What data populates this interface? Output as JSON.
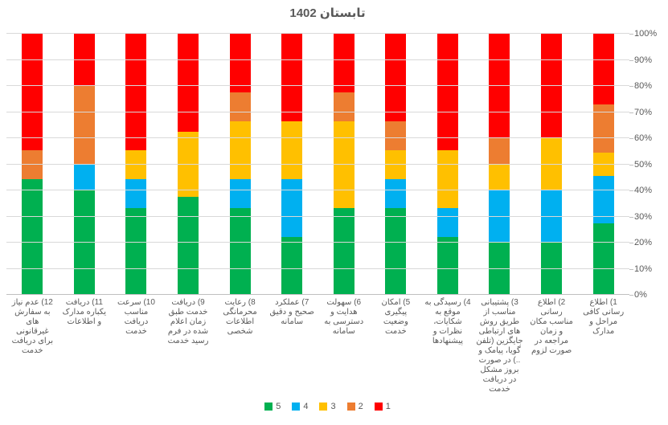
{
  "chart_data": {
    "type": "bar",
    "subtype": "stacked-100-percent",
    "title": "تابستان 1402",
    "orientation": "vertical",
    "grid": true,
    "y_axis_side": "right",
    "legend_position": "bottom",
    "ylim": [
      0,
      100
    ],
    "y_ticks": [
      "0%",
      "10%",
      "20%",
      "30%",
      "40%",
      "50%",
      "60%",
      "70%",
      "80%",
      "90%",
      "100%"
    ],
    "categories": [
      "12) عدم نیاز به سفارش های غیرقانونی برای دریافت خدمت",
      "11) دریافت یکباره مدارک و اطلاعات",
      "10) سرعت مناسب دریافت خدمت",
      "9) دریافت خدمت طبق زمان اعلام شده در فرم رسید خدمت",
      "8) رعایت محرمانگی اطلاعات شخصی",
      "7) عملکرد صحیح و دقیق سامانه",
      "6) سهولت هدایت و دسترسی به سامانه",
      "5) امکان پیگیری وضعیت خدمت",
      "4) رسیدگی به موقع به شکایات، نظرات و پیشنهادها",
      "3) پشتیبانی مناسب از طریق روش های ارتباطی جایگزین (تلفن گویا، پیامک و ..) در صورت بروز مشکل در دریافت خدمت",
      "2) اطلاع رسانی مناسب مکان و زمان مراجعه در صورت لزوم",
      "1) اطلاع رسانی کافی مراحل و مدارک"
    ],
    "series": [
      {
        "name": "5",
        "color": "#00B050",
        "values": [
          44.4,
          40,
          33.3,
          37.5,
          33.3,
          22.2,
          33.3,
          33.3,
          22.2,
          20,
          20,
          27.3
        ]
      },
      {
        "name": "4",
        "color": "#00B0F0",
        "values": [
          0,
          10,
          11.1,
          0,
          11.1,
          22.2,
          0,
          11.1,
          11.1,
          20,
          20,
          18.2
        ]
      },
      {
        "name": "3",
        "color": "#FFC000",
        "values": [
          0,
          0,
          11.1,
          25,
          22.2,
          22.2,
          33.3,
          11.1,
          22.2,
          10,
          20,
          9.1
        ]
      },
      {
        "name": "2",
        "color": "#ED7D31",
        "values": [
          11.1,
          30,
          0,
          0,
          11.1,
          0,
          11.1,
          11.1,
          0,
          10,
          0,
          18.2
        ]
      },
      {
        "name": "1",
        "color": "#FF0000",
        "values": [
          44.5,
          20,
          44.5,
          37.5,
          22.3,
          33.4,
          22.3,
          33.4,
          44.5,
          40,
          40,
          27.2
        ]
      }
    ]
  },
  "colors": {
    "title_text": "#595959",
    "axis_text": "#595959",
    "gridline": "#D9D9D9",
    "axis_line": "#BFBFBF",
    "background": "#FFFFFF"
  }
}
